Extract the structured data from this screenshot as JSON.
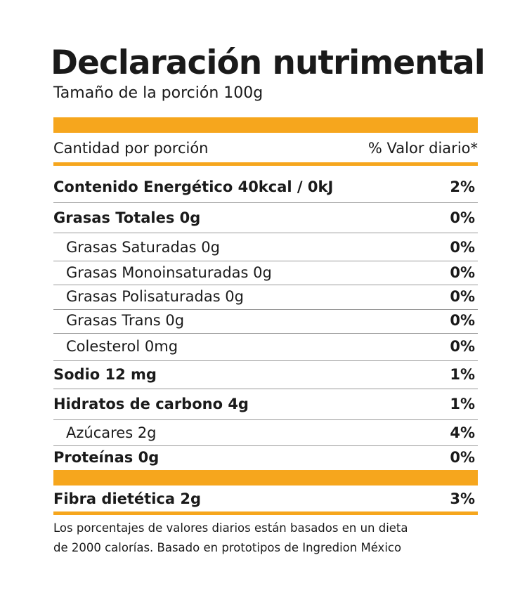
{
  "title": "Declaración nutrimental",
  "serving_size": "Tamaño de la porción 100g",
  "header": {
    "amount_label": "Cantidad por porción",
    "dv_label": "% Valor diario*"
  },
  "rows": [
    {
      "name": "Contenido Energético 40kcal / 0kJ",
      "pct": "2%"
    },
    {
      "name": "Grasas Totales 0g",
      "pct": "0%"
    },
    {
      "name": "Grasas Saturadas 0g",
      "pct": "0%"
    },
    {
      "name": "Grasas Monoinsaturadas 0g",
      "pct": "0%"
    },
    {
      "name": "Grasas Polisaturadas 0g",
      "pct": "0%"
    },
    {
      "name": "Grasas Trans 0g",
      "pct": "0%"
    },
    {
      "name": "Colesterol 0mg",
      "pct": "0%"
    },
    {
      "name": "Sodio 12 mg",
      "pct": "1%"
    },
    {
      "name": "Hidratos de carbono 4g",
      "pct": "1%"
    },
    {
      "name": "Azúcares 2g",
      "pct": "4%"
    },
    {
      "name": "Proteínas 0g",
      "pct": "0%"
    },
    {
      "name": "Fibra dietética 2g",
      "pct": "3%"
    }
  ],
  "footnote": {
    "line1": "Los porcentajes de valores diarios están basados en un dieta",
    "line2": "de 2000 calorías. Basado en prototipos de Ingredion México"
  },
  "colors": {
    "accent": "#f6a61d",
    "text": "#1a1a1a",
    "divider": "#9a9a9a"
  }
}
